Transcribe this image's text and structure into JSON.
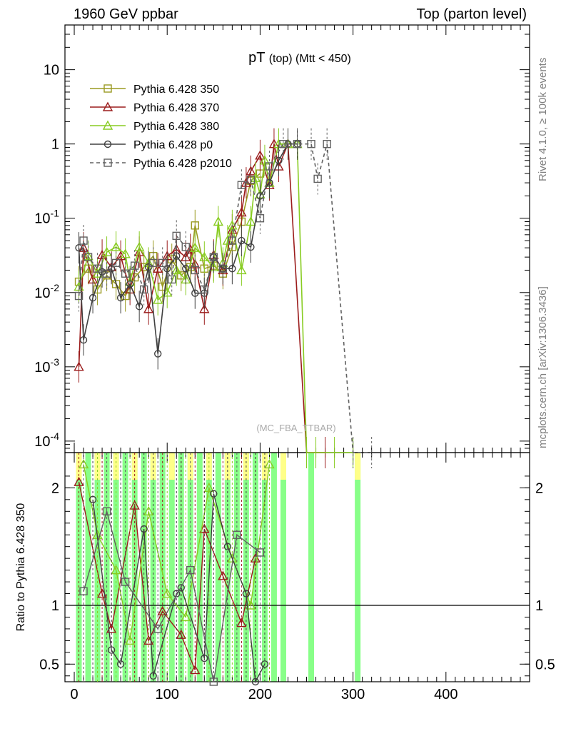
{
  "header": {
    "left": "1960 GeV ppbar",
    "right": "Top (parton level)"
  },
  "side_labels": {
    "rivet": "Rivet 4.1.0, ≥ 100k events",
    "mcplots": "mcplots.cern.ch [arXiv:1306.3436]"
  },
  "watermark": "(MC_FBA_TTBAR)",
  "chart_data": [
    {
      "type": "line",
      "panel": "main",
      "title": "pT (top) (Mtt < 450)",
      "title_main": "pT",
      "title_sub": "(top) (Mtt < 450)",
      "ylabel": "",
      "yscale": "log",
      "ylim": [
        7e-05,
        40
      ],
      "xlim": [
        -10,
        490
      ],
      "y_ticks": [
        {
          "value": 10,
          "label": "10"
        },
        {
          "value": 1,
          "label": "1"
        },
        {
          "value": 0.1,
          "label": "10^-1"
        },
        {
          "value": 0.01,
          "label": "10^-2"
        },
        {
          "value": 0.001,
          "label": "10^-3"
        },
        {
          "value": 0.0001,
          "label": "10^-4"
        }
      ],
      "legend_position": "top-left",
      "series": [
        {
          "name": "Pythia 6.428 350",
          "color": "#9a9a22",
          "marker": "square",
          "dash": false,
          "x": [
            5,
            15,
            25,
            35,
            45,
            55,
            65,
            75,
            85,
            95,
            105,
            115,
            125,
            130,
            140,
            150,
            160,
            170,
            180,
            190,
            200
          ],
          "y": [
            0.014,
            0.021,
            0.011,
            0.017,
            0.013,
            0.009,
            0.016,
            0.022,
            0.031,
            0.012,
            0.028,
            0.017,
            0.022,
            0.08,
            0.021,
            0.023,
            0.018,
            0.041,
            0.09,
            0.32,
            0.4
          ]
        },
        {
          "name": "Pythia 6.428 370",
          "color": "#9b1c1c",
          "marker": "triangle",
          "dash": false,
          "x": [
            5,
            10,
            20,
            30,
            40,
            50,
            60,
            70,
            80,
            90,
            100,
            110,
            120,
            125,
            130,
            140,
            150,
            160,
            170,
            180,
            185,
            190,
            200,
            210,
            215,
            220,
            230,
            250,
            270
          ],
          "y": [
            0.001,
            0.04,
            0.015,
            0.032,
            0.022,
            0.031,
            0.011,
            0.035,
            0.006,
            0.021,
            0.031,
            0.038,
            0.03,
            0.038,
            0.024,
            0.006,
            0.032,
            0.02,
            0.07,
            0.12,
            0.3,
            0.43,
            0.7,
            0.28,
            1.0,
            0.5,
            1.0,
            6e-05,
            6e-05
          ]
        },
        {
          "name": "Pythia 6.428 380",
          "color": "#88cc22",
          "marker": "triangle",
          "dash": false,
          "x": [
            5,
            15,
            25,
            35,
            45,
            55,
            60,
            70,
            80,
            90,
            100,
            110,
            120,
            130,
            140,
            150,
            155,
            160,
            165,
            170,
            180,
            190,
            195,
            200,
            205,
            210,
            220,
            230,
            240,
            250,
            260,
            280,
            300
          ],
          "y": [
            0.012,
            0.031,
            0.018,
            0.035,
            0.041,
            0.033,
            0.014,
            0.041,
            0.025,
            0.008,
            0.01,
            0.02,
            0.015,
            0.04,
            0.03,
            0.022,
            0.09,
            0.025,
            0.05,
            0.08,
            0.02,
            0.09,
            0.35,
            0.21,
            0.6,
            0.3,
            1.0,
            1.0,
            1.0,
            6e-05,
            6e-05,
            6e-05,
            6e-05
          ]
        },
        {
          "name": "Pythia 6.428 p0",
          "color": "#404040",
          "marker": "circle",
          "dash": false,
          "x": [
            5,
            10,
            20,
            30,
            40,
            50,
            60,
            70,
            80,
            90,
            100,
            110,
            120,
            130,
            140,
            150,
            160,
            170,
            180,
            190,
            200,
            210,
            220,
            230,
            240
          ],
          "y": [
            0.04,
            0.0023,
            0.0085,
            0.019,
            0.021,
            0.0085,
            0.013,
            0.0065,
            0.022,
            0.0015,
            0.021,
            0.031,
            0.021,
            0.0098,
            0.0098,
            0.03,
            0.021,
            0.021,
            0.05,
            0.041,
            0.2,
            0.3,
            0.6,
            1.0,
            1.0
          ]
        },
        {
          "name": "Pythia 6.428 p2010",
          "color": "#606060",
          "marker": "square",
          "dash": true,
          "x": [
            5,
            10,
            15,
            25,
            35,
            45,
            55,
            65,
            75,
            85,
            95,
            105,
            110,
            120,
            130,
            140,
            150,
            160,
            170,
            180,
            190,
            200,
            210,
            225,
            240,
            255,
            262,
            272,
            300,
            320
          ],
          "y": [
            0.009,
            0.05,
            0.03,
            0.021,
            0.018,
            0.025,
            0.018,
            0.023,
            0.011,
            0.025,
            0.025,
            0.015,
            0.058,
            0.041,
            0.02,
            0.011,
            0.03,
            0.021,
            0.05,
            0.28,
            0.33,
            0.1,
            0.5,
            1.0,
            1.0,
            1.0,
            0.34,
            1.0,
            6e-05,
            6e-05
          ]
        }
      ]
    },
    {
      "type": "line",
      "panel": "ratio",
      "ylabel": "Ratio to Pythia 6.428 350",
      "xlabel": "",
      "ylim": [
        0.35,
        2.3
      ],
      "xlim": [
        -10,
        490
      ],
      "x_ticks": [
        0,
        100,
        200,
        300,
        400
      ],
      "y_ticks": [
        0.5,
        1,
        2
      ],
      "band": {
        "color_yellow": "#ffff88",
        "color_green": "#88ff88",
        "x": [
          5,
          15,
          25,
          35,
          45,
          55,
          65,
          75,
          85,
          95,
          105,
          115,
          125,
          135,
          145,
          155,
          165,
          175,
          185,
          195,
          205,
          215,
          225,
          255,
          305
        ]
      },
      "series": [
        {
          "name": "Pythia 6.428 370",
          "color": "#9b1c1c",
          "marker": "triangle",
          "x": [
            5,
            30,
            40,
            65,
            80,
            95,
            115,
            130,
            140,
            160,
            180,
            195
          ],
          "y": [
            2.05,
            1.1,
            0.8,
            1.85,
            0.7,
            0.95,
            0.75,
            0.45,
            1.65,
            1.25,
            0.85,
            1.4
          ]
        },
        {
          "name": "Pythia 6.428 380",
          "color": "#88cc22",
          "marker": "triangle",
          "x": [
            10,
            25,
            45,
            60,
            80,
            100,
            120,
            145,
            170,
            190,
            210
          ],
          "y": [
            2.2,
            1.6,
            1.3,
            0.7,
            1.8,
            1.1,
            0.9,
            2.0,
            1.4,
            1.0,
            2.2
          ]
        },
        {
          "name": "Pythia 6.428 p0",
          "color": "#404040",
          "marker": "circle",
          "x": [
            20,
            40,
            50,
            75,
            85,
            110,
            115,
            140,
            150,
            165,
            185,
            195,
            205
          ],
          "y": [
            1.9,
            0.62,
            0.5,
            1.65,
            0.4,
            1.1,
            1.15,
            0.55,
            1.95,
            1.5,
            1.1,
            0.35,
            0.5
          ]
        },
        {
          "name": "Pythia 6.428 p2010",
          "color": "#606060",
          "marker": "square",
          "x": [
            10,
            35,
            55,
            90,
            125,
            150,
            175,
            200
          ],
          "y": [
            1.12,
            1.8,
            1.2,
            0.8,
            1.3,
            0.35,
            1.6,
            1.45
          ]
        }
      ]
    }
  ]
}
